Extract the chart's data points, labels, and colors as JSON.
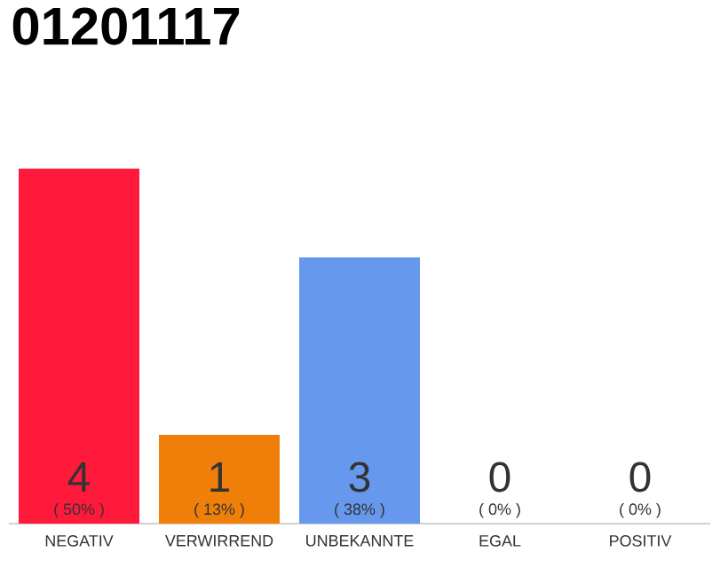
{
  "chart_data": {
    "type": "bar",
    "title": "01201117",
    "categories": [
      "NEGATIV",
      "VERWIRREND",
      "UNBEKANNTE",
      "EGAL",
      "POSITIV"
    ],
    "values": [
      4,
      1,
      3,
      0,
      0
    ],
    "colors": [
      "#ff1a3c",
      "#f07f0a",
      "#6699ee",
      "#999999",
      "#999999"
    ],
    "ylim": [
      0,
      4
    ],
    "tick_labels": "x",
    "data_labels": true,
    "annotations": [
      "( 50% )",
      "( 13% )",
      "( 38% )",
      "( 0% )",
      "( 0% )"
    ]
  }
}
